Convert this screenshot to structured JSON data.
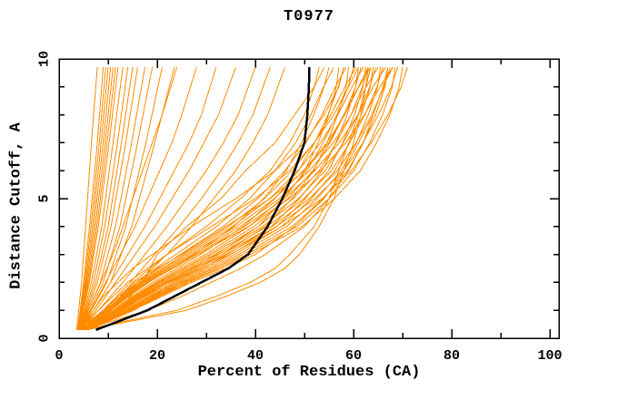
{
  "chart_data": {
    "type": "line",
    "title": "T0977",
    "x_axis": {
      "label": "Percent of Residues (CA)",
      "min": 0,
      "max": 100,
      "major_ticks": [
        0,
        20,
        40,
        60,
        80,
        100
      ],
      "minor_ticks": [
        10,
        30,
        50,
        70,
        90
      ]
    },
    "y_axis": {
      "label": "Distance Cutoff, A",
      "min": 0,
      "max": 10,
      "major_ticks": [
        0,
        5,
        10
      ],
      "minor_ticks": [
        1,
        2,
        3,
        4,
        6,
        7,
        8,
        9
      ]
    },
    "legend_position": "none",
    "grid_lines": "off",
    "colors": {
      "models": "#FF8C00",
      "highlight": "#000000",
      "frame": "#000000",
      "background": "#FFFFFF"
    },
    "cutoff_grids": {
      "c6": [
        0.3,
        1,
        2,
        4,
        7,
        9.7
      ],
      "c10": [
        0.3,
        1,
        2,
        3,
        4,
        5,
        6,
        7,
        8,
        9.7
      ],
      "c11": [
        0.3,
        1,
        2,
        3,
        4,
        5,
        6,
        7,
        8,
        9,
        9.7
      ],
      "c13": [
        0.3,
        1,
        1.5,
        2,
        2.5,
        3,
        4,
        5,
        6,
        7,
        8,
        9,
        9.7
      ]
    },
    "orange_series": [
      {
        "grid": "c6",
        "pcts": [
          3.6,
          4.0,
          4.6,
          5.4,
          6.6,
          7.8
        ]
      },
      {
        "grid": "c6",
        "pcts": [
          3.8,
          4.3,
          5.0,
          6.2,
          7.8,
          9.0
        ]
      },
      {
        "grid": "c6",
        "pcts": [
          3.8,
          4.4,
          5.2,
          6.5,
          8.2,
          9.5
        ]
      },
      {
        "grid": "c6",
        "pcts": [
          3.9,
          4.5,
          5.4,
          6.8,
          8.6,
          10.0
        ]
      },
      {
        "grid": "c6",
        "pcts": [
          3.9,
          4.6,
          5.6,
          7.1,
          9.0,
          10.5
        ]
      },
      {
        "grid": "c6",
        "pcts": [
          4.0,
          4.7,
          5.8,
          7.4,
          9.4,
          11.0
        ]
      },
      {
        "grid": "c6",
        "pcts": [
          4.0,
          4.8,
          6.0,
          7.7,
          9.8,
          11.5
        ]
      },
      {
        "grid": "c6",
        "pcts": [
          4.0,
          5.0,
          6.2,
          8.0,
          10.2,
          12.0
        ]
      },
      {
        "grid": "c6",
        "pcts": [
          4.1,
          5.2,
          6.6,
          8.7,
          11.0,
          13.0
        ]
      },
      {
        "grid": "c6",
        "pcts": [
          4.1,
          5.4,
          7.0,
          9.3,
          11.9,
          14.0
        ]
      },
      {
        "grid": "c6",
        "pcts": [
          4.2,
          5.6,
          7.4,
          10.0,
          12.7,
          15.0
        ]
      },
      {
        "grid": "c6",
        "pcts": [
          4.2,
          5.8,
          7.8,
          10.6,
          13.6,
          16.0
        ]
      },
      {
        "grid": "c6",
        "pcts": [
          4.3,
          6.0,
          8.4,
          11.5,
          14.8,
          17.5
        ]
      },
      {
        "grid": "c6",
        "pcts": [
          4.3,
          6.3,
          9.0,
          12.4,
          16.0,
          19.0
        ]
      },
      {
        "grid": "c6",
        "pcts": [
          4.4,
          6.6,
          9.7,
          13.6,
          17.7,
          21.0
        ]
      },
      {
        "grid": "c6",
        "pcts": [
          4.4,
          7.0,
          10.5,
          14.8,
          19.5,
          23.5
        ]
      },
      {
        "grid": "c10",
        "pcts": [
          4.0,
          6.0,
          8.5,
          11.0,
          13.0,
          15.0,
          17.0,
          19.0,
          21.0,
          24.0
        ]
      },
      {
        "grid": "c10",
        "pcts": [
          4.0,
          6.5,
          9.5,
          12.5,
          15.5,
          18.0,
          20.5,
          23.0,
          25.0,
          28.0
        ]
      },
      {
        "grid": "c10",
        "pcts": [
          4.2,
          7.0,
          10.5,
          14.0,
          17.5,
          20.5,
          23.5,
          26.5,
          29.0,
          32.0
        ]
      },
      {
        "grid": "c10",
        "pcts": [
          4.2,
          7.5,
          11.5,
          15.5,
          19.5,
          23.0,
          26.5,
          29.5,
          32.5,
          36.0
        ]
      },
      {
        "grid": "c10",
        "pcts": [
          4.5,
          8.0,
          13.0,
          17.5,
          22.0,
          26.0,
          30.0,
          33.5,
          36.5,
          40.0
        ]
      },
      {
        "grid": "c10",
        "pcts": [
          4.5,
          9.0,
          14.5,
          19.5,
          24.5,
          29.0,
          33.0,
          36.5,
          39.5,
          43.0
        ]
      },
      {
        "grid": "c10",
        "pcts": [
          5.0,
          10.0,
          16.0,
          22.0,
          27.0,
          31.5,
          36.0,
          39.5,
          42.5,
          46.0
        ]
      },
      {
        "grid": "c11",
        "pcts": [
          5.0,
          12.0,
          17.0,
          20.0,
          26.0,
          33.0,
          38.0,
          44.0,
          48.0,
          52.0,
          54.0
        ]
      },
      {
        "grid": "c11",
        "pcts": [
          4.5,
          10.0,
          15.0,
          22.0,
          30.0,
          37.0,
          43.0,
          47.0,
          50.0,
          52.0,
          53.0
        ]
      },
      {
        "grid": "c13",
        "pcts": [
          5.5,
          26.0,
          34.0,
          41.0,
          46.0,
          49.0,
          53.0,
          56.0,
          58.0,
          60.0,
          61.5,
          62.5,
          63.0
        ]
      },
      {
        "grid": "c13",
        "pcts": [
          5.0,
          24.0,
          32.0,
          39.0,
          44.0,
          47.0,
          52.0,
          55.0,
          57.0,
          59.0,
          61.0,
          62.5,
          63.5
        ]
      },
      {
        "grid": "c13",
        "pcts": [
          5.0,
          18.0,
          25.0,
          31.0,
          37.0,
          42.0,
          50.0,
          55.0,
          59.0,
          62.0,
          64.0,
          66.0,
          67.0
        ]
      },
      {
        "grid": "c13",
        "pcts": [
          4.5,
          15.0,
          21.0,
          27.0,
          34.0,
          40.0,
          48.0,
          54.0,
          58.0,
          61.0,
          64.0,
          66.0,
          68.0
        ]
      },
      {
        "grid": "c13",
        "pcts": [
          4.0,
          8.0,
          11.0,
          14.0,
          18.0,
          22.0,
          31.0,
          40.0,
          47.0,
          52.0,
          56.0,
          59.0,
          61.0
        ]
      },
      {
        "grid": "c13",
        "pcts": [
          4.0,
          9.0,
          12.0,
          16.0,
          20.0,
          25.0,
          34.0,
          43.0,
          50.0,
          55.0,
          58.0,
          61.0,
          63.0
        ]
      },
      {
        "grid": "c13",
        "pcts": [
          4.0,
          7.0,
          9.0,
          12.0,
          15.0,
          19.0,
          27.0,
          36.0,
          44.0,
          50.0,
          54.0,
          57.0,
          58.0
        ]
      },
      {
        "grid": "c13",
        "pcts": [
          5.0,
          10.6,
          14.2,
          18.3,
          22.9,
          27.5,
          35.6,
          41.7,
          46.3,
          49.4,
          51.9,
          54.0,
          55.0
        ]
      },
      {
        "grid": "c13",
        "pcts": [
          4.8,
          9.2,
          12.1,
          15.4,
          19.6,
          23.8,
          32.1,
          38.8,
          44.0,
          48.2,
          51.3,
          53.9,
          56.0
        ]
      },
      {
        "grid": "c13",
        "pcts": [
          5.6,
          13.0,
          17.3,
          22.0,
          27.3,
          32.1,
          40.6,
          45.9,
          50.1,
          52.8,
          54.9,
          56.5,
          57.0
        ]
      },
      {
        "grid": "c13",
        "pcts": [
          5.1,
          11.0,
          14.8,
          19.1,
          24.0,
          28.8,
          37.5,
          44.0,
          48.8,
          52.1,
          54.8,
          56.9,
          58.0
        ]
      },
      {
        "grid": "c13",
        "pcts": [
          4.8,
          9.5,
          12.5,
          16.0,
          20.4,
          24.7,
          33.4,
          40.5,
          46.0,
          50.3,
          53.6,
          56.3,
          58.5
        ]
      },
      {
        "grid": "c13",
        "pcts": [
          5.7,
          13.4,
          17.8,
          22.7,
          28.2,
          33.2,
          42.0,
          47.5,
          51.9,
          54.6,
          56.8,
          58.5,
          59.0
        ]
      },
      {
        "grid": "c13",
        "pcts": [
          5.1,
          11.3,
          15.2,
          19.7,
          24.7,
          29.8,
          38.7,
          45.4,
          50.5,
          53.8,
          56.6,
          58.9,
          60.0
        ]
      },
      {
        "grid": "c13",
        "pcts": [
          4.8,
          9.7,
          12.8,
          16.4,
          21.0,
          25.5,
          34.5,
          41.9,
          47.5,
          52.0,
          55.4,
          58.2,
          60.5
        ]
      },
      {
        "grid": "c13",
        "pcts": [
          5.7,
          13.7,
          18.3,
          23.4,
          29.1,
          34.2,
          43.3,
          49.0,
          53.6,
          56.4,
          58.7,
          60.4,
          61.0
        ]
      },
      {
        "grid": "c13",
        "pcts": [
          5.2,
          11.5,
          15.5,
          20.1,
          25.3,
          30.5,
          39.7,
          46.6,
          51.7,
          55.2,
          58.1,
          60.4,
          61.5
        ]
      },
      {
        "grid": "c13",
        "pcts": [
          4.9,
          9.8,
          13.0,
          16.8,
          21.4,
          26.0,
          35.3,
          42.9,
          48.7,
          53.3,
          56.8,
          59.7,
          62.0
        ]
      },
      {
        "grid": "c13",
        "pcts": [
          5.8,
          13.9,
          18.6,
          23.9,
          29.7,
          35.0,
          44.4,
          50.2,
          54.9,
          57.8,
          60.2,
          61.9,
          62.5
        ]
      },
      {
        "grid": "c13",
        "pcts": [
          5.2,
          11.7,
          15.8,
          20.5,
          25.8,
          31.1,
          40.6,
          47.7,
          53.0,
          56.5,
          59.5,
          61.8,
          63.0
        ]
      },
      {
        "grid": "c13",
        "pcts": [
          4.9,
          10.0,
          13.2,
          17.1,
          21.9,
          26.6,
          36.1,
          43.9,
          49.8,
          54.6,
          58.2,
          61.1,
          63.5
        ]
      },
      {
        "grid": "c13",
        "pcts": [
          5.8,
          14.2,
          19.0,
          24.4,
          30.4,
          35.8,
          45.4,
          51.4,
          56.2,
          59.2,
          61.6,
          63.4,
          64.0
        ]
      },
      {
        "grid": "c13",
        "pcts": [
          5.2,
          11.9,
          16.1,
          20.9,
          26.4,
          31.8,
          41.5,
          48.8,
          54.2,
          57.9,
          60.9,
          63.3,
          64.5
        ]
      },
      {
        "grid": "c13",
        "pcts": [
          4.9,
          10.1,
          13.5,
          17.4,
          22.3,
          27.2,
          36.9,
          44.9,
          51.0,
          55.9,
          59.5,
          62.6,
          65.0
        ]
      },
      {
        "grid": "c13",
        "pcts": [
          5.8,
          14.5,
          19.4,
          24.9,
          31.1,
          36.6,
          46.4,
          52.6,
          57.5,
          60.6,
          63.0,
          64.9,
          65.5
        ]
      },
      {
        "grid": "c13",
        "pcts": [
          5.2,
          12.1,
          16.4,
          21.4,
          26.9,
          32.5,
          42.4,
          49.9,
          55.5,
          59.2,
          62.3,
          64.8,
          66.0
        ]
      },
      {
        "grid": "c13",
        "pcts": [
          4.9,
          10.3,
          13.7,
          17.8,
          22.8,
          27.8,
          37.8,
          45.9,
          52.1,
          57.1,
          60.9,
          64.0,
          66.5
        ]
      },
      {
        "grid": "c13",
        "pcts": [
          5.9,
          14.7,
          19.8,
          25.4,
          31.7,
          37.4,
          47.5,
          53.8,
          58.8,
          62.0,
          64.5,
          66.4,
          67.0
        ]
      },
      {
        "grid": "c13",
        "pcts": [
          5.3,
          12.3,
          16.7,
          21.8,
          27.5,
          33.2,
          43.4,
          51.0,
          56.7,
          60.5,
          63.7,
          66.2,
          67.5
        ]
      },
      {
        "grid": "c13",
        "pcts": [
          5.0,
          10.4,
          13.9,
          18.1,
          23.2,
          28.3,
          38.6,
          46.9,
          53.3,
          58.4,
          62.2,
          65.4,
          68.0
        ]
      },
      {
        "grid": "c13",
        "pcts": [
          5.9,
          15.0,
          20.1,
          25.9,
          32.4,
          38.2,
          48.5,
          55.0,
          60.1,
          63.3,
          65.9,
          67.9,
          68.5
        ]
      },
      {
        "grid": "c13",
        "pcts": [
          5.3,
          12.5,
          17.0,
          22.2,
          28.1,
          33.9,
          44.3,
          52.1,
          58.0,
          61.9,
          65.1,
          67.7,
          69.0
        ]
      },
      {
        "grid": "c13",
        "pcts": [
          6.0,
          15.2,
          20.5,
          26.4,
          33.0,
          39.0,
          49.5,
          56.1,
          61.4,
          64.7,
          67.4,
          69.3,
          70.0
        ]
      },
      {
        "grid": "c13",
        "pcts": [
          5.3,
          12.7,
          17.4,
          22.8,
          28.8,
          34.8,
          45.5,
          53.6,
          59.6,
          63.6,
          67.0,
          69.7,
          71.0
        ]
      }
    ],
    "highlight_series": {
      "grid": "c13",
      "pcts": [
        7.5,
        18.0,
        23.5,
        29.0,
        34.5,
        38.5,
        42.5,
        45.5,
        48.0,
        50.0,
        50.6,
        50.9,
        51.0
      ]
    }
  }
}
